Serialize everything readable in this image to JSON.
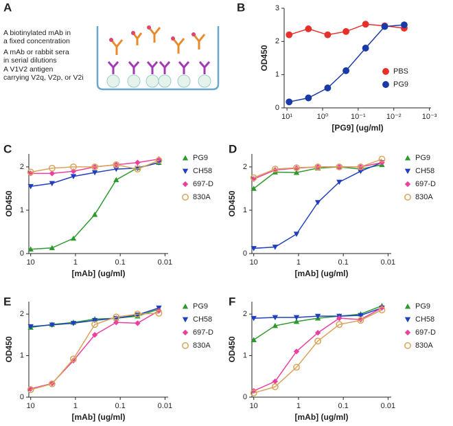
{
  "diagram": {
    "panel": "A",
    "captions": [
      {
        "lines": [
          "A biotinylated mAb in",
          "a fixed concentration"
        ],
        "color": "#e8892b"
      },
      {
        "lines": [
          "A mAb or rabbit sera",
          "in serial dilutions"
        ],
        "color": "#a33ab5"
      },
      {
        "lines": [
          "A V1V2 antigen",
          "carrying V2q, V2p, or V2i"
        ],
        "color": "#6aa7c8"
      }
    ]
  },
  "chart_data": [
    {
      "type": "scatter",
      "panel": "B",
      "x_label": "[PG9] (ug/ml)",
      "y_label": "OD450",
      "xscale": "log",
      "xlim": [
        12,
        0.0009
      ],
      "xticks": [
        {
          "value": 10,
          "label": "10¹"
        },
        {
          "value": 1,
          "label": "10⁰"
        },
        {
          "value": 0.1,
          "label": "10⁻¹"
        },
        {
          "value": 0.01,
          "label": "10⁻²"
        },
        {
          "value": 0.001,
          "label": "10⁻³"
        }
      ],
      "ylim": [
        0,
        3
      ],
      "yticks": [
        0,
        1,
        2,
        3
      ],
      "x": [
        8.7,
        2.5,
        0.72,
        0.22,
        0.062,
        0.018,
        0.0051
      ],
      "series": [
        {
          "name": "PBS",
          "color": "#e8302a",
          "marker": "circle",
          "values": [
            2.2,
            2.38,
            2.2,
            2.3,
            2.52,
            2.47,
            2.4
          ]
        },
        {
          "name": "PG9",
          "color": "#1a3aa8",
          "marker": "circle",
          "values": [
            0.18,
            0.3,
            0.6,
            1.12,
            1.8,
            2.45,
            2.5
          ]
        }
      ]
    },
    {
      "type": "scatter",
      "panel": "C",
      "x_label": "[mAb] (ug/ml)",
      "y_label": "OD450",
      "xscale": "log",
      "xlim": [
        11,
        0.0085
      ],
      "xticks": [
        10,
        1,
        0.1,
        0.01
      ],
      "ylim": [
        0,
        2.3
      ],
      "yticks": [
        0,
        1,
        2
      ],
      "x": [
        10,
        3.33,
        1.11,
        0.37,
        0.123,
        0.041,
        0.0137
      ],
      "series": [
        {
          "name": "PG9",
          "color": "#2e9a2e",
          "marker": "triangle-up",
          "values": [
            0.1,
            0.13,
            0.35,
            0.9,
            1.7,
            1.98,
            2.1
          ]
        },
        {
          "name": "CH58",
          "color": "#1f3fbf",
          "marker": "triangle-down",
          "values": [
            1.55,
            1.62,
            1.78,
            1.87,
            1.95,
            1.97,
            2.1
          ]
        },
        {
          "name": "697-D",
          "color": "#ec3fa0",
          "marker": "diamond",
          "values": [
            1.85,
            1.85,
            1.9,
            2.0,
            2.05,
            2.1,
            2.18
          ]
        },
        {
          "name": "830A",
          "color": "#d9a35a",
          "marker": "open-circle",
          "values": [
            1.88,
            1.97,
            2.0,
            2.0,
            2.05,
            1.95,
            2.15
          ]
        }
      ]
    },
    {
      "type": "scatter",
      "panel": "D",
      "x_label": "[mAb] (ug/ml)",
      "y_label": "OD450",
      "xscale": "log",
      "xlim": [
        11,
        0.0085
      ],
      "xticks": [
        10,
        1,
        0.1,
        0.01
      ],
      "ylim": [
        0,
        2.3
      ],
      "yticks": [
        0,
        1,
        2
      ],
      "x": [
        10,
        3.33,
        1.11,
        0.37,
        0.123,
        0.041,
        0.0137
      ],
      "series": [
        {
          "name": "PG9",
          "color": "#2e9a2e",
          "marker": "triangle-up",
          "values": [
            1.5,
            1.88,
            1.87,
            1.97,
            2.0,
            1.95,
            2.05
          ]
        },
        {
          "name": "CH58",
          "color": "#1f3fbf",
          "marker": "triangle-down",
          "values": [
            0.12,
            0.15,
            0.45,
            1.18,
            1.65,
            1.9,
            2.1
          ]
        },
        {
          "name": "697-D",
          "color": "#ec3fa0",
          "marker": "diamond",
          "values": [
            1.72,
            1.93,
            1.97,
            2.0,
            2.0,
            2.0,
            2.1
          ]
        },
        {
          "name": "830A",
          "color": "#d9a35a",
          "marker": "open-circle",
          "values": [
            1.75,
            1.95,
            1.98,
            2.0,
            2.0,
            2.0,
            2.18
          ]
        }
      ]
    },
    {
      "type": "scatter",
      "panel": "E",
      "x_label": "[mAb] (ug/ml)",
      "y_label": "OD450",
      "xscale": "log",
      "xlim": [
        11,
        0.0085
      ],
      "xticks": [
        10,
        1,
        0.1,
        0.01
      ],
      "ylim": [
        0,
        2.3
      ],
      "yticks": [
        0,
        1,
        2
      ],
      "x": [
        10,
        3.33,
        1.11,
        0.37,
        0.123,
        0.041,
        0.0137
      ],
      "series": [
        {
          "name": "PG9",
          "color": "#2e9a2e",
          "marker": "triangle-up",
          "values": [
            1.68,
            1.75,
            1.8,
            1.88,
            1.9,
            1.95,
            2.12
          ]
        },
        {
          "name": "CH58",
          "color": "#1f3fbf",
          "marker": "triangle-down",
          "values": [
            1.7,
            1.74,
            1.78,
            1.85,
            1.9,
            1.98,
            2.15
          ]
        },
        {
          "name": "697-D",
          "color": "#ec3fa0",
          "marker": "diamond",
          "values": [
            0.2,
            0.33,
            0.88,
            1.5,
            1.8,
            1.78,
            2.08
          ]
        },
        {
          "name": "830A",
          "color": "#d9a35a",
          "marker": "open-circle",
          "values": [
            0.18,
            0.32,
            0.92,
            1.75,
            1.93,
            2.0,
            2.02
          ]
        }
      ]
    },
    {
      "type": "scatter",
      "panel": "F",
      "x_label": "[mAb] (ug/ml)",
      "y_label": "OD450",
      "xscale": "log",
      "xlim": [
        11,
        0.0085
      ],
      "xticks": [
        10,
        1,
        0.1,
        0.01
      ],
      "ylim": [
        0,
        2.3
      ],
      "yticks": [
        0,
        1,
        2
      ],
      "x": [
        10,
        3.33,
        1.11,
        0.37,
        0.123,
        0.041,
        0.0137
      ],
      "series": [
        {
          "name": "PG9",
          "color": "#2e9a2e",
          "marker": "triangle-up",
          "values": [
            1.38,
            1.72,
            1.82,
            1.9,
            1.95,
            2.0,
            2.2
          ]
        },
        {
          "name": "CH58",
          "color": "#1f3fbf",
          "marker": "triangle-down",
          "values": [
            1.9,
            1.92,
            1.92,
            1.95,
            1.95,
            1.97,
            2.15
          ]
        },
        {
          "name": "697-D",
          "color": "#ec3fa0",
          "marker": "diamond",
          "values": [
            0.15,
            0.38,
            1.1,
            1.55,
            1.9,
            1.87,
            2.15
          ]
        },
        {
          "name": "830A",
          "color": "#d9a35a",
          "marker": "open-circle",
          "values": [
            0.1,
            0.25,
            0.72,
            1.35,
            1.75,
            1.85,
            2.1
          ]
        }
      ]
    }
  ]
}
